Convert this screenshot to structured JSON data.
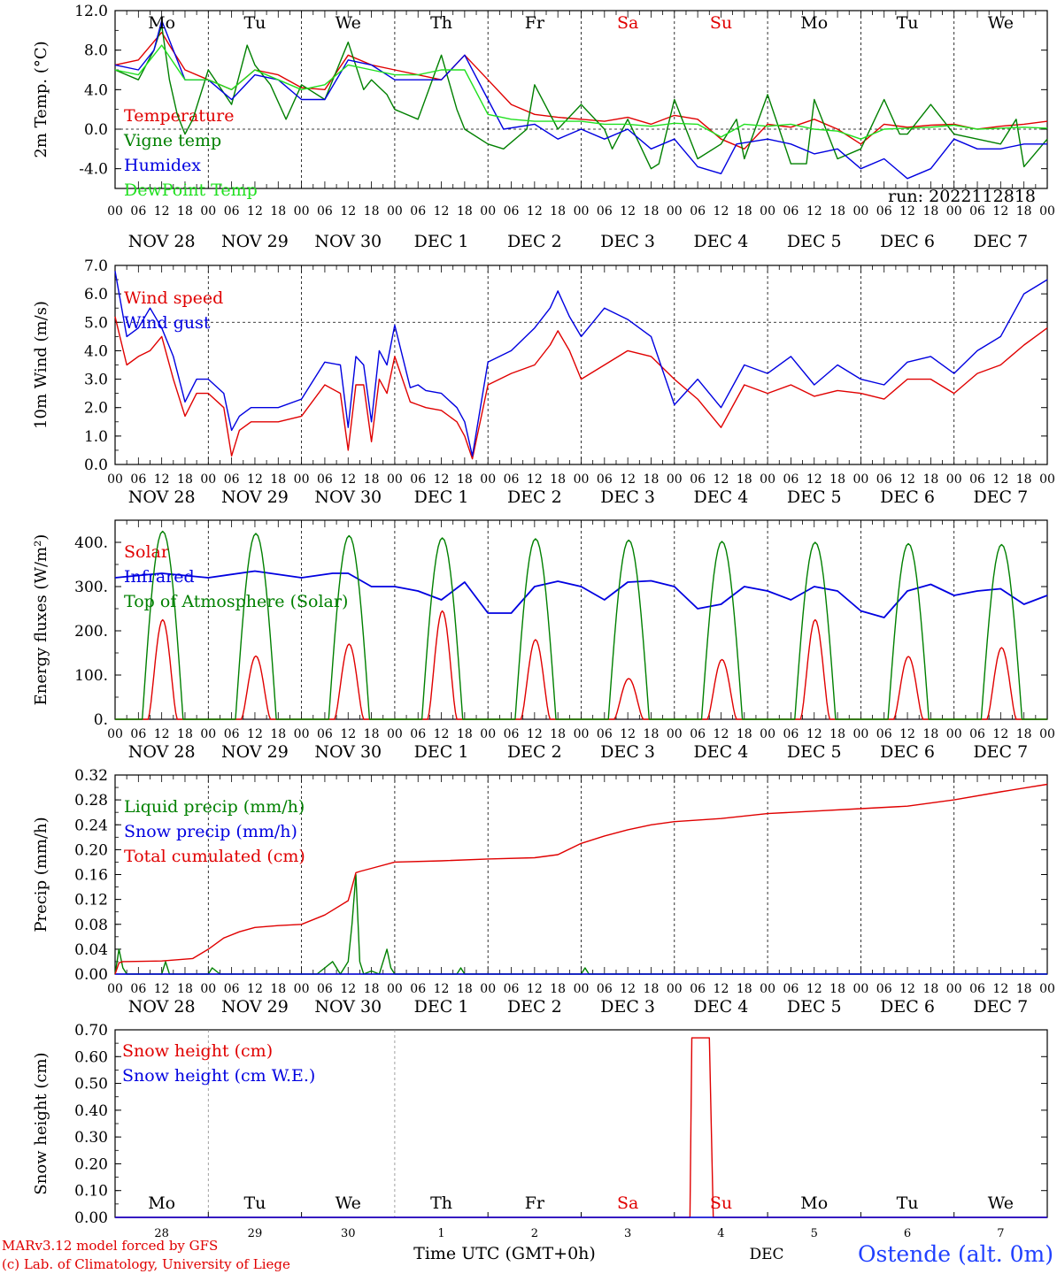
{
  "run_label": "run: 2022112818",
  "footer": {
    "credit_line1": "MARv3.12 model forced by GFS",
    "credit_line2": "(c) Lab. of Climatology, University of Liege",
    "x_title": "Time UTC (GMT+0h)",
    "month": "DEC",
    "station": "Ostende (alt. 0m)"
  },
  "colors": {
    "red": "#e00000",
    "darkgreen": "#008000",
    "blue": "#0000e0",
    "lightgreen": "#20e020",
    "weekend": "#e00000"
  },
  "days": [
    {
      "dow": "Mo",
      "date": "NOV 28",
      "num": "28",
      "weekend": false
    },
    {
      "dow": "Tu",
      "date": "NOV 29",
      "num": "29",
      "weekend": false
    },
    {
      "dow": "We",
      "date": "NOV 30",
      "num": "30",
      "weekend": false
    },
    {
      "dow": "Th",
      "date": "DEC  1",
      "num": "1",
      "weekend": false
    },
    {
      "dow": "Fr",
      "date": "DEC  2",
      "num": "2",
      "weekend": false
    },
    {
      "dow": "Sa",
      "date": "DEC  3",
      "num": "3",
      "weekend": true
    },
    {
      "dow": "Su",
      "date": "DEC  4",
      "num": "4",
      "weekend": true
    },
    {
      "dow": "Mo",
      "date": "DEC  5",
      "num": "5",
      "weekend": false
    },
    {
      "dow": "Tu",
      "date": "DEC  6",
      "num": "6",
      "weekend": false
    },
    {
      "dow": "We",
      "date": "DEC  7",
      "num": "7",
      "weekend": false
    }
  ],
  "hour_labels": [
    "00",
    "06",
    "12",
    "18"
  ],
  "chart_data": [
    {
      "type": "line",
      "ylabel": "2m Temp. (°C)",
      "ylim": [
        -6,
        12
      ],
      "yticks": [
        -4,
        0,
        4,
        8,
        12
      ],
      "ytick_labels": [
        "-4.0",
        "0.0",
        "4.0",
        "8.0",
        "12.0"
      ],
      "ref_line": 0,
      "x_unit": "hours since 28 Nov 00 UTC",
      "series": [
        {
          "name": "Temperature",
          "color": "red",
          "x": [
            0,
            6,
            12,
            14,
            18,
            24,
            30,
            36,
            42,
            48,
            54,
            60,
            66,
            72,
            78,
            84,
            90,
            96,
            102,
            108,
            114,
            120,
            126,
            132,
            138,
            144,
            150,
            156,
            162,
            168,
            174,
            180,
            186,
            192,
            198,
            204,
            210,
            216,
            222,
            228,
            234,
            240
          ],
          "y": [
            6.5,
            7,
            9.8,
            8.5,
            6,
            5,
            4,
            6,
            5.5,
            4.2,
            4,
            7.5,
            6.5,
            6,
            5.5,
            5,
            7.5,
            5,
            2.5,
            1.5,
            1.2,
            1,
            0.8,
            1.2,
            0.5,
            1.4,
            1,
            -1,
            -2,
            0.5,
            0.2,
            1,
            0,
            -1.5,
            0.5,
            0.2,
            0.4,
            0.5,
            0,
            0.3,
            0.5,
            0.8
          ]
        },
        {
          "name": "Vigne temp",
          "color": "darkgreen",
          "x": [
            0,
            6,
            10,
            12,
            14,
            16,
            18,
            20,
            24,
            30,
            34,
            36,
            40,
            44,
            48,
            54,
            60,
            64,
            66,
            70,
            72,
            78,
            84,
            88,
            90,
            96,
            100,
            106,
            108,
            114,
            120,
            126,
            128,
            132,
            138,
            140,
            144,
            150,
            156,
            160,
            162,
            168,
            174,
            178,
            180,
            186,
            192,
            198,
            202,
            204,
            210,
            216,
            222,
            228,
            232,
            234,
            240
          ],
          "y": [
            6,
            5,
            8,
            10.5,
            5,
            1.5,
            -0.5,
            1,
            6,
            2.5,
            8.5,
            6.5,
            4.5,
            1,
            4.5,
            3,
            8.8,
            4,
            5,
            3.5,
            2,
            1,
            7.5,
            2,
            0,
            -1.5,
            -2,
            0,
            4.5,
            0,
            2.5,
            0,
            -2,
            1,
            -4,
            -3.5,
            3,
            -3,
            -1.5,
            1,
            -3,
            3.5,
            -3.5,
            -3.5,
            3,
            -3,
            -2,
            3,
            -0.5,
            -0.5,
            2.5,
            -0.5,
            -1,
            -1.5,
            1,
            -3.8,
            -1
          ]
        },
        {
          "name": "Humidex",
          "color": "blue",
          "x": [
            0,
            6,
            10,
            12,
            14,
            18,
            24,
            30,
            36,
            42,
            48,
            54,
            60,
            66,
            72,
            78,
            84,
            90,
            96,
            100,
            108,
            114,
            120,
            126,
            132,
            138,
            144,
            150,
            156,
            160,
            168,
            174,
            180,
            186,
            192,
            198,
            204,
            210,
            216,
            222,
            228,
            234,
            240
          ],
          "y": [
            6.5,
            6,
            8,
            11,
            9,
            5,
            5,
            3,
            5.5,
            5,
            3,
            3,
            7,
            6.5,
            5,
            5,
            5,
            7.5,
            3,
            0,
            0.5,
            -1,
            0,
            -1,
            0,
            -2,
            -1,
            -3.8,
            -4.5,
            -1.5,
            -1,
            -1.5,
            -2.5,
            -2,
            -4,
            -3,
            -5,
            -4,
            -1,
            -2,
            -2,
            -1.5,
            -1.5
          ]
        },
        {
          "name": "DewPoint Temp",
          "color": "lightgreen",
          "x": [
            0,
            6,
            12,
            18,
            24,
            30,
            36,
            42,
            48,
            54,
            60,
            66,
            72,
            78,
            84,
            90,
            96,
            102,
            108,
            114,
            120,
            126,
            132,
            138,
            144,
            150,
            156,
            162,
            168,
            174,
            180,
            186,
            192,
            198,
            204,
            210,
            216,
            222,
            228,
            234,
            240
          ],
          "y": [
            6,
            5.5,
            8.5,
            5,
            5,
            4,
            6,
            5,
            4,
            4.5,
            6.5,
            6,
            5.5,
            5.5,
            6,
            6,
            1.5,
            1,
            0.8,
            0.8,
            0.8,
            0.5,
            0.5,
            0.3,
            0.6,
            0.5,
            -0.8,
            0.5,
            0.3,
            0.5,
            0,
            -0.2,
            -1,
            0,
            0.1,
            0.2,
            0.4,
            0,
            0.1,
            0.2,
            0.1
          ]
        }
      ]
    },
    {
      "type": "line",
      "ylabel": "10m Wind (m/s)",
      "ylim": [
        0,
        7
      ],
      "yticks": [
        0,
        1,
        2,
        3,
        4,
        5,
        6,
        7
      ],
      "ytick_labels": [
        "0.0",
        "1.0",
        "2.0",
        "3.0",
        "4.0",
        "5.0",
        "6.0",
        "7.0"
      ],
      "ref_line": 5,
      "series": [
        {
          "name": "Wind speed",
          "color": "red",
          "x": [
            0,
            3,
            6,
            9,
            12,
            15,
            18,
            21,
            24,
            28,
            30,
            32,
            35,
            38,
            42,
            48,
            54,
            58,
            60,
            62,
            64,
            66,
            68,
            70,
            72,
            76,
            78,
            80,
            84,
            88,
            90,
            92,
            96,
            102,
            108,
            112,
            114,
            117,
            120,
            126,
            132,
            138,
            144,
            150,
            156,
            162,
            168,
            174,
            180,
            186,
            192,
            198,
            204,
            210,
            216,
            222,
            228,
            234,
            240
          ],
          "y": [
            5.2,
            3.5,
            3.8,
            4,
            4.5,
            3,
            1.7,
            2.5,
            2.5,
            2,
            0.3,
            1.2,
            1.5,
            1.5,
            1.5,
            1.7,
            2.8,
            2.5,
            0.5,
            2.8,
            2.8,
            0.8,
            3,
            2.5,
            3.8,
            2.2,
            2.1,
            2,
            1.9,
            1.5,
            1,
            0.2,
            2.8,
            3.2,
            3.5,
            4.2,
            4.7,
            4,
            3,
            3.5,
            4,
            3.8,
            3,
            2.3,
            1.3,
            2.8,
            2.5,
            2.8,
            2.4,
            2.6,
            2.5,
            2.3,
            3,
            3,
            2.5,
            3.2,
            3.5,
            4.2,
            4.8
          ]
        },
        {
          "name": "Wind gust",
          "color": "blue",
          "x": [
            0,
            3,
            6,
            9,
            12,
            15,
            18,
            21,
            24,
            28,
            30,
            32,
            35,
            38,
            42,
            48,
            54,
            58,
            60,
            62,
            64,
            66,
            68,
            70,
            72,
            76,
            78,
            80,
            84,
            88,
            90,
            92,
            96,
            102,
            108,
            112,
            114,
            117,
            120,
            126,
            132,
            138,
            144,
            150,
            156,
            162,
            168,
            174,
            180,
            186,
            192,
            198,
            204,
            210,
            216,
            222,
            228,
            234,
            240
          ],
          "y": [
            6.8,
            4.5,
            4.8,
            5.5,
            4.8,
            3.8,
            2.2,
            3,
            3,
            2.5,
            1.2,
            1.7,
            2,
            2,
            2,
            2.3,
            3.6,
            3.5,
            1.3,
            3.8,
            3.5,
            1.5,
            4,
            3.5,
            4.9,
            2.7,
            2.8,
            2.6,
            2.5,
            2,
            1.5,
            0.3,
            3.6,
            4,
            4.8,
            5.5,
            6.1,
            5.2,
            4.5,
            5.5,
            5.1,
            4.5,
            2.1,
            3,
            2,
            3.5,
            3.2,
            3.8,
            2.8,
            3.5,
            3,
            2.8,
            3.6,
            3.8,
            3.2,
            4,
            4.5,
            6,
            6.5
          ]
        }
      ]
    },
    {
      "type": "line",
      "ylabel": "Energy fluxes (W/m²)",
      "ylim": [
        0,
        450
      ],
      "yticks": [
        0,
        100,
        200,
        300,
        400
      ],
      "ytick_labels": [
        "0.",
        "100.",
        "200.",
        "300.",
        "400."
      ],
      "series": [
        {
          "name": "Solar",
          "color": "red",
          "peak_values": [
            225,
            143,
            170,
            245,
            180,
            92,
            135,
            225,
            142,
            162
          ]
        },
        {
          "name": "Infrared",
          "color": "blue",
          "x": [
            0,
            12,
            24,
            36,
            48,
            56,
            60,
            66,
            72,
            78,
            84,
            90,
            96,
            102,
            108,
            114,
            120,
            126,
            132,
            138,
            144,
            150,
            156,
            162,
            168,
            174,
            180,
            186,
            192,
            198,
            204,
            210,
            216,
            222,
            228,
            234,
            240
          ],
          "y": [
            320,
            330,
            320,
            335,
            320,
            330,
            330,
            300,
            300,
            290,
            270,
            310,
            240,
            240,
            300,
            312,
            300,
            270,
            310,
            313,
            300,
            250,
            260,
            300,
            290,
            270,
            300,
            290,
            245,
            230,
            290,
            305,
            280,
            290,
            295,
            260,
            280
          ]
        },
        {
          "name": "Top of Atmosphere (Solar)",
          "color": "darkgreen",
          "peak_values": [
            425,
            420,
            415,
            410,
            408,
            405,
            402,
            400,
            397,
            395
          ]
        }
      ]
    },
    {
      "type": "line",
      "ylabel": "Precip (mm/h)",
      "ylim": [
        0,
        0.32
      ],
      "yticks": [
        0,
        0.04,
        0.08,
        0.12,
        0.16,
        0.2,
        0.24,
        0.28,
        0.32
      ],
      "ytick_labels": [
        "0.00",
        "0.04",
        "0.08",
        "0.12",
        "0.16",
        "0.20",
        "0.24",
        "0.28",
        "0.32"
      ],
      "series": [
        {
          "name": "Liquid precip (mm/h)",
          "color": "darkgreen",
          "x": [
            0,
            1,
            2,
            3,
            4,
            12,
            13,
            14,
            24,
            25,
            26,
            27,
            36,
            52,
            54,
            56,
            58,
            60,
            61,
            62,
            63,
            64,
            66,
            68,
            70,
            71,
            72,
            74,
            88,
            89,
            90,
            120,
            121,
            122,
            240
          ],
          "y": [
            0,
            0.04,
            0.01,
            0,
            0,
            0,
            0.02,
            0,
            0,
            0.01,
            0.005,
            0,
            0,
            0,
            0.01,
            0.02,
            0,
            0.02,
            0.08,
            0.16,
            0.02,
            0,
            0.005,
            0,
            0.04,
            0.01,
            0,
            0,
            0,
            0.01,
            0,
            0,
            0.01,
            0,
            0
          ]
        },
        {
          "name": "Snow precip (mm/h)",
          "color": "blue",
          "x": [
            0,
            240
          ],
          "y": [
            0,
            0
          ]
        },
        {
          "name": "Total cumulated (cm)",
          "color": "red",
          "x": [
            0,
            1,
            2,
            12,
            20,
            24,
            28,
            32,
            36,
            42,
            48,
            54,
            60,
            61,
            62,
            63,
            66,
            72,
            84,
            96,
            108,
            114,
            120,
            126,
            132,
            138,
            144,
            156,
            168,
            180,
            192,
            204,
            216,
            228,
            240
          ],
          "y": [
            0,
            0.018,
            0.02,
            0.021,
            0.025,
            0.04,
            0.058,
            0.068,
            0.075,
            0.078,
            0.08,
            0.095,
            0.118,
            0.14,
            0.163,
            0.165,
            0.17,
            0.18,
            0.182,
            0.185,
            0.187,
            0.192,
            0.21,
            0.222,
            0.232,
            0.24,
            0.245,
            0.25,
            0.258,
            0.262,
            0.266,
            0.27,
            0.28,
            0.293,
            0.305
          ]
        }
      ]
    },
    {
      "type": "line",
      "ylabel": "Snow height (cm)",
      "ylim": [
        0,
        0.7
      ],
      "yticks": [
        0,
        0.1,
        0.2,
        0.3,
        0.4,
        0.5,
        0.6,
        0.7
      ],
      "ytick_labels": [
        "0.00",
        "0.10",
        "0.20",
        "0.30",
        "0.40",
        "0.50",
        "0.60",
        "0.70"
      ],
      "series": [
        {
          "name": "Snow height (cm)",
          "color": "red",
          "x": [
            0,
            148,
            148.5,
            153,
            154,
            240
          ],
          "y": [
            0,
            0,
            0.67,
            0.67,
            0,
            0
          ]
        },
        {
          "name": "Snow height (cm W.E.)",
          "color": "blue",
          "x": [
            0,
            240
          ],
          "y": [
            0,
            0
          ]
        }
      ]
    }
  ]
}
